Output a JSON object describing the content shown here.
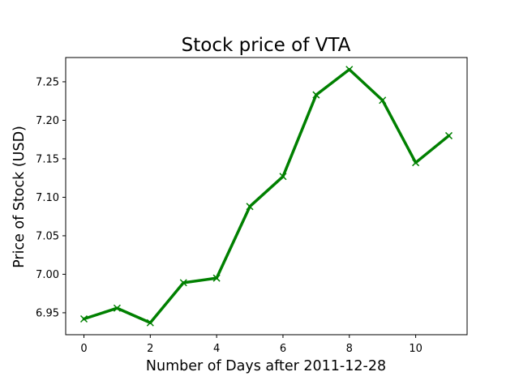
{
  "chart_data": {
    "type": "line",
    "title": "Stock price of VTA",
    "xlabel": "Number of Days after 2011-12-28",
    "ylabel": "Price of Stock (USD)",
    "xlim": [
      -0.55,
      11.55
    ],
    "ylim": [
      6.9215,
      7.2815
    ],
    "xticks": [
      0,
      2,
      4,
      6,
      8,
      10
    ],
    "yticks": [
      6.95,
      7.0,
      7.05,
      7.1,
      7.15,
      7.2,
      7.25
    ],
    "grid": false,
    "x": [
      0,
      1,
      2,
      3,
      4,
      5,
      6,
      7,
      8,
      9,
      10,
      11
    ],
    "series": [
      {
        "values": [
          6.942,
          6.956,
          6.937,
          6.989,
          6.995,
          7.088,
          7.127,
          7.233,
          7.266,
          7.226,
          7.145,
          7.18
        ],
        "color": "#008000",
        "marker": "x"
      }
    ]
  }
}
